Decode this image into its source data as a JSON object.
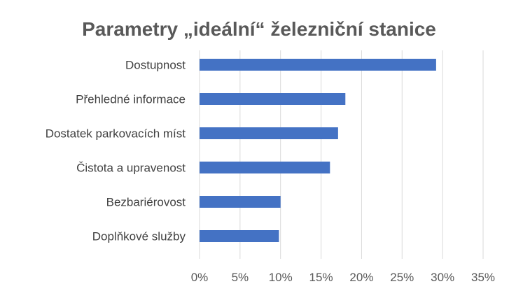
{
  "chart_data": {
    "type": "bar",
    "orientation": "horizontal",
    "title": "Parametry „ideální“ železniční stanice",
    "categories": [
      "Dostupnost",
      "Přehledné informace",
      "Dostatek parkovacích míst",
      "Čistota a upravenost",
      "Bezbariérovost",
      "Doplňkové služby"
    ],
    "values": [
      29.2,
      18.0,
      17.1,
      16.1,
      10.0,
      9.8
    ],
    "xlim": [
      0,
      35
    ],
    "x_ticks": [
      "0%",
      "5%",
      "10%",
      "15%",
      "20%",
      "25%",
      "30%",
      "35%"
    ],
    "grid": true,
    "legend": "none",
    "bar_color": "#4472C4"
  }
}
